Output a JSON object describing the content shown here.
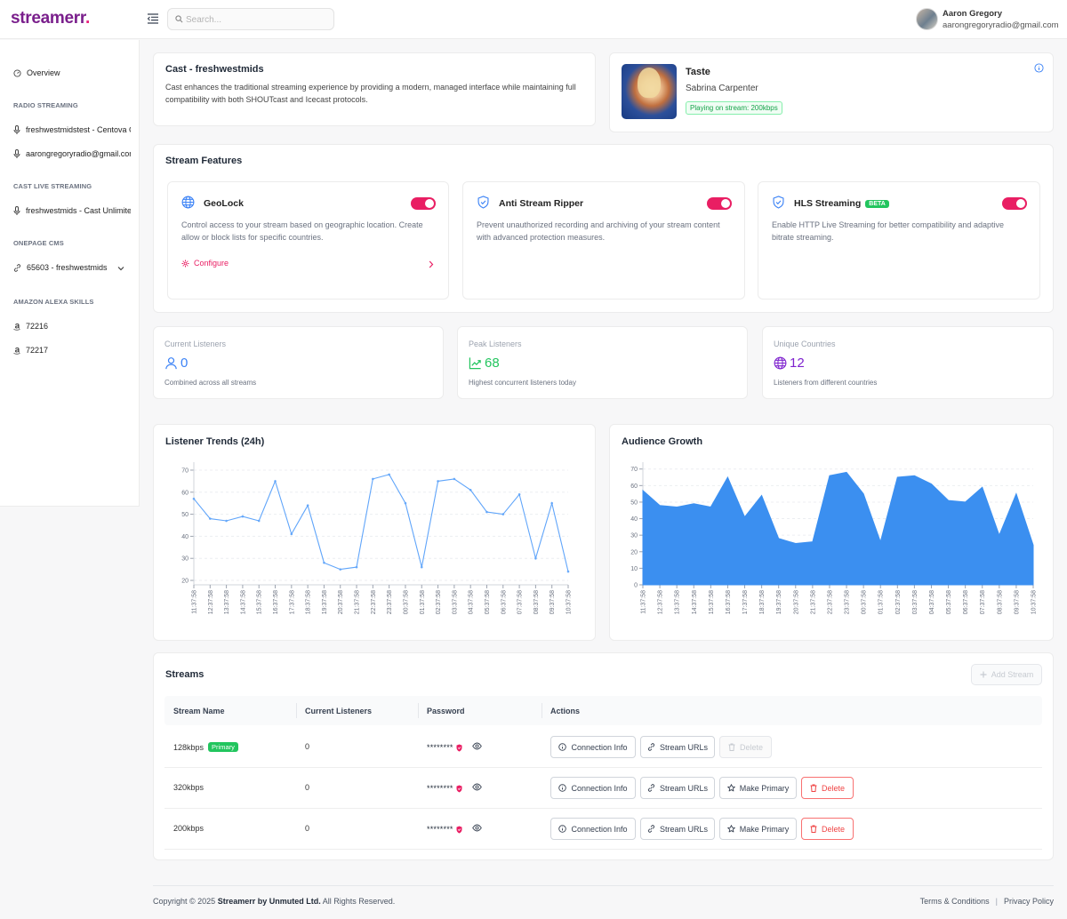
{
  "brand": {
    "name": "streamerr",
    "accent": "#e91e63",
    "logo_color": "#7a1f8c"
  },
  "search": {
    "placeholder": "Search..."
  },
  "user": {
    "name": "Aaron Gregory",
    "email": "aarongregoryradio@gmail.com"
  },
  "sidebar": {
    "overview": "Overview",
    "radio_heading": "RADIO STREAMING",
    "radio_items": [
      "freshwestmidstest - Centova C",
      "aarongregoryradio@gmail.con"
    ],
    "cast_heading": "CAST LIVE STREAMING",
    "cast_items": [
      "freshwestmids - Cast Unlimite"
    ],
    "cms_heading": "ONEPAGE CMS",
    "cms_items": [
      "65603 - freshwestmids"
    ],
    "alexa_heading": "AMAZON ALEXA SKILLS",
    "alexa_items": [
      "72216",
      "72217"
    ]
  },
  "cast": {
    "title": "Cast - freshwestmids",
    "description": "Cast enhances the traditional streaming experience by providing a modern, managed interface while maintaining full compatibility with both SHOUTcast and Icecast protocols."
  },
  "now_playing": {
    "title": "Taste",
    "artist": "Sabrina Carpenter",
    "badge": "Playing on stream: 200kbps"
  },
  "features": {
    "title": "Stream Features",
    "items": [
      {
        "name": "GeoLock",
        "description": "Control access to your stream based on geographic location. Create allow or block lists for specific countries.",
        "enabled": true,
        "action": "Configure"
      },
      {
        "name": "Anti Stream Ripper",
        "description": "Prevent unauthorized recording and archiving of your stream content with advanced protection measures.",
        "enabled": true
      },
      {
        "name": "HLS Streaming",
        "badge": "BETA",
        "description": "Enable HTTP Live Streaming for better compatibility and adaptive bitrate streaming.",
        "enabled": true
      }
    ]
  },
  "stats": [
    {
      "label": "Current Listeners",
      "value": "0",
      "sub": "Combined across all streams",
      "color": "#3b82f6"
    },
    {
      "label": "Peak Listeners",
      "value": "68",
      "sub": "Highest concurrent listeners today",
      "color": "#22c55e"
    },
    {
      "label": "Unique Countries",
      "value": "12",
      "sub": "Listeners from different countries",
      "color": "#7e22ce"
    }
  ],
  "chart_data": [
    {
      "type": "line",
      "title": "Listener Trends (24h)",
      "x": [
        "11:37:58",
        "12:37:58",
        "13:37:58",
        "14:37:58",
        "15:37:58",
        "16:37:58",
        "17:37:58",
        "18:37:58",
        "19:37:58",
        "20:37:58",
        "21:37:58",
        "22:37:58",
        "23:37:58",
        "00:37:58",
        "01:37:58",
        "02:37:58",
        "03:37:58",
        "04:37:58",
        "05:37:58",
        "06:37:58",
        "07:37:58",
        "08:37:58",
        "09:37:58",
        "10:37:58"
      ],
      "values": [
        57,
        48,
        47,
        49,
        47,
        65,
        41,
        54,
        28,
        25,
        26,
        66,
        68,
        55,
        26,
        65,
        66,
        61,
        51,
        50,
        59,
        30,
        55,
        24
      ],
      "yticks": [
        20,
        30,
        40,
        50,
        60,
        70
      ],
      "ylim": [
        18,
        72
      ],
      "color": "#60a5fa"
    },
    {
      "type": "area",
      "title": "Audience Growth",
      "x": [
        "11:37:58",
        "12:37:58",
        "13:37:58",
        "14:37:58",
        "15:37:58",
        "16:37:58",
        "17:37:58",
        "18:37:58",
        "19:37:58",
        "20:37:58",
        "21:37:58",
        "22:37:58",
        "23:37:58",
        "00:37:58",
        "01:37:58",
        "02:37:58",
        "03:37:58",
        "04:37:58",
        "05:37:58",
        "06:37:58",
        "07:37:58",
        "08:37:58",
        "09:37:58",
        "10:37:58"
      ],
      "values": [
        57,
        48,
        47,
        49,
        47,
        65,
        41,
        54,
        28,
        25,
        26,
        66,
        68,
        55,
        26,
        65,
        66,
        61,
        51,
        50,
        59,
        30,
        55,
        24
      ],
      "yticks": [
        0,
        10,
        20,
        30,
        40,
        50,
        60,
        70
      ],
      "ylim": [
        0,
        72
      ],
      "color": "#3b8ff0"
    }
  ],
  "streams": {
    "title": "Streams",
    "add_label": "Add Stream",
    "columns": [
      "Stream Name",
      "Current Listeners",
      "Password",
      "Actions"
    ],
    "rows": [
      {
        "name": "128kbps",
        "badge": "Primary",
        "listeners": "0",
        "password": "********"
      },
      {
        "name": "320kbps",
        "listeners": "0",
        "password": "********"
      },
      {
        "name": "200kbps",
        "listeners": "0",
        "password": "********"
      }
    ],
    "actions": {
      "connection": "Connection Info",
      "urls": "Stream URLs",
      "make_primary": "Make Primary",
      "delete": "Delete"
    }
  },
  "footer": {
    "copyright_prefix": "Copyright © 2025",
    "company": "Streamerr by Unmuted Ltd.",
    "copyright_suffix": "All Rights Reserved.",
    "terms": "Terms & Conditions",
    "privacy": "Privacy Policy"
  }
}
